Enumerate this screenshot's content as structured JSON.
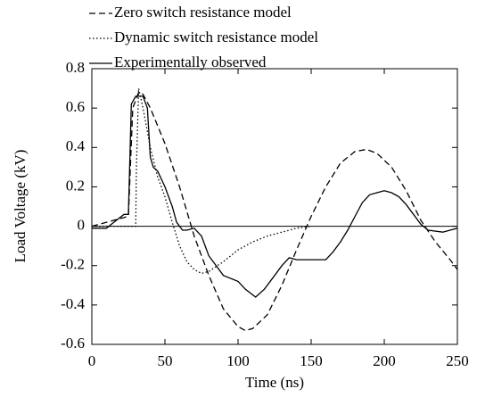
{
  "chart_data": {
    "type": "line",
    "xlabel": "Time (ns)",
    "ylabel": "Load Voltage (kV)",
    "xlim": [
      0,
      250
    ],
    "xticks": [
      0,
      50,
      100,
      150,
      200,
      250
    ],
    "ylim": [
      -0.6,
      0.8
    ],
    "yticks": [
      0.8,
      0.6,
      0.4,
      0.2,
      0,
      -0.2,
      -0.4,
      -0.6
    ],
    "series": [
      {
        "name": "Zero switch resistance model",
        "color": "#000000",
        "linestyle": "dashed",
        "x": [
          0,
          25,
          28,
          32,
          35,
          40,
          50,
          60,
          70,
          80,
          90,
          100,
          105,
          110,
          120,
          130,
          140,
          150,
          160,
          170,
          180,
          188,
          195,
          205,
          215,
          225,
          235,
          245,
          250
        ],
        "values": [
          0,
          0.05,
          0.6,
          0.68,
          0.67,
          0.6,
          0.42,
          0.2,
          -0.05,
          -0.25,
          -0.42,
          -0.51,
          -0.53,
          -0.52,
          -0.45,
          -0.3,
          -0.12,
          0.05,
          0.2,
          0.32,
          0.38,
          0.39,
          0.37,
          0.3,
          0.18,
          0.03,
          -0.08,
          -0.17,
          -0.22
        ]
      },
      {
        "name": "Dynamic switch resistance model",
        "color": "#000000",
        "linestyle": "dotted",
        "x": [
          0,
          30,
          30.5,
          32,
          35,
          40,
          45,
          50,
          55,
          60,
          65,
          70,
          75,
          80,
          90,
          100,
          110,
          120,
          130,
          140,
          150
        ],
        "values": [
          0,
          0,
          0.3,
          0.7,
          0.6,
          0.4,
          0.25,
          0.15,
          0.02,
          -0.1,
          -0.18,
          -0.22,
          -0.24,
          -0.23,
          -0.18,
          -0.12,
          -0.08,
          -0.05,
          -0.03,
          -0.01,
          0
        ]
      },
      {
        "name": "Experimentally observed",
        "color": "#000000",
        "linestyle": "solid",
        "x": [
          0,
          10,
          15,
          22,
          25,
          27,
          30,
          35,
          38,
          40,
          42,
          45,
          50,
          55,
          58,
          62,
          65,
          70,
          75,
          80,
          90,
          100,
          105,
          112,
          118,
          125,
          130,
          135,
          140,
          150,
          160,
          165,
          170,
          175,
          180,
          185,
          190,
          195,
          200,
          205,
          210,
          215,
          220,
          225,
          230,
          240,
          245,
          250
        ],
        "values": [
          -0.01,
          -0.01,
          0.02,
          0.06,
          0.06,
          0.62,
          0.66,
          0.66,
          0.6,
          0.35,
          0.3,
          0.28,
          0.2,
          0.1,
          0.02,
          -0.02,
          -0.02,
          -0.01,
          -0.05,
          -0.15,
          -0.25,
          -0.28,
          -0.32,
          -0.36,
          -0.32,
          -0.25,
          -0.2,
          -0.16,
          -0.17,
          -0.17,
          -0.17,
          -0.13,
          -0.08,
          -0.02,
          0.05,
          0.12,
          0.16,
          0.17,
          0.18,
          0.17,
          0.15,
          0.11,
          0.06,
          0.01,
          -0.02,
          -0.03,
          -0.02,
          -0.01
        ]
      }
    ]
  }
}
